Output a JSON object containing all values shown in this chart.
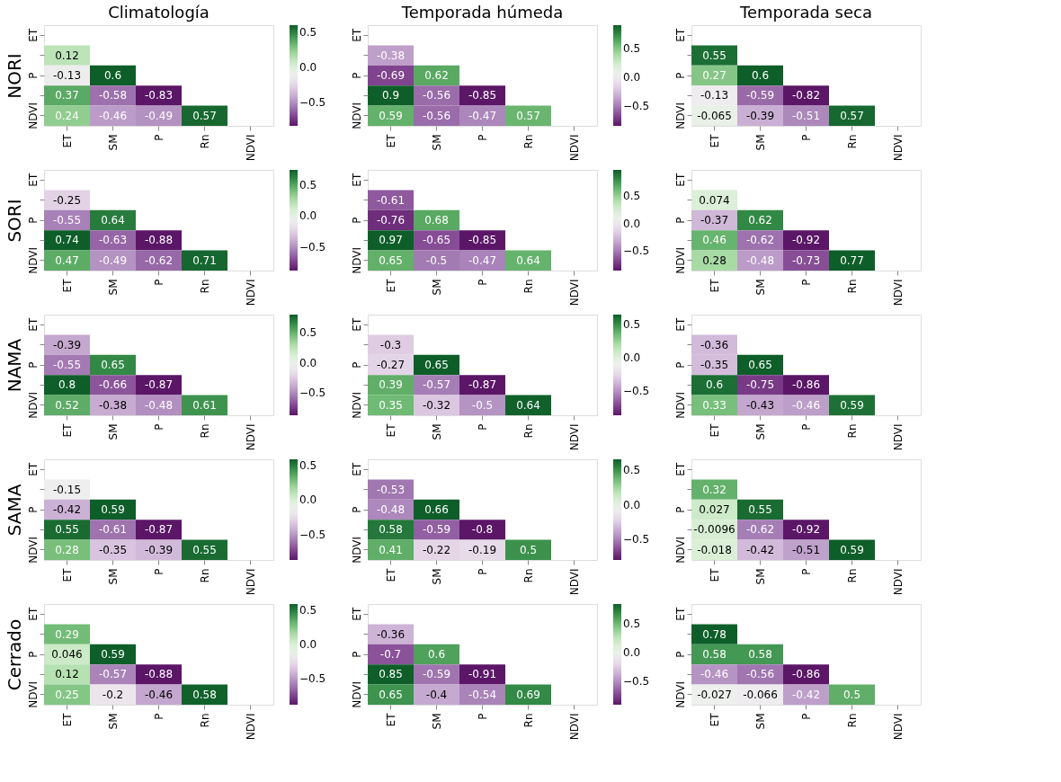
{
  "chart_data": [
    {
      "type": "heatmap",
      "title": "Climatología",
      "ylabel": "NORI",
      "data_labels": true,
      "categories": [
        "ET",
        "SM",
        "P",
        "Rn",
        "NDVI"
      ],
      "y_categories": [
        "ET",
        null,
        "P",
        null,
        "NDVI"
      ],
      "cells": [
        [
          null,
          null,
          null,
          null,
          null
        ],
        [
          0.12,
          null,
          null,
          null,
          null
        ],
        [
          -0.13,
          0.6,
          null,
          null,
          null
        ],
        [
          0.37,
          -0.58,
          -0.83,
          null,
          null
        ],
        [
          0.24,
          -0.46,
          -0.49,
          0.57,
          null
        ]
      ],
      "clim": [
        -0.83,
        0.6
      ],
      "cticks": [
        {
          "value": -0.5,
          "label": "−0.5"
        },
        {
          "value": 0,
          "label": "0.0"
        },
        {
          "value": 0.5,
          "label": "0.5"
        }
      ]
    },
    {
      "type": "heatmap",
      "title": "Temporada húmeda",
      "data_labels": true,
      "categories": [
        "ET",
        "SM",
        "P",
        "Rn",
        "NDVI"
      ],
      "y_categories": [
        "ET",
        null,
        "P",
        null,
        "NDVI"
      ],
      "cells": [
        [
          null,
          null,
          null,
          null,
          null
        ],
        [
          -0.38,
          null,
          null,
          null,
          null
        ],
        [
          -0.69,
          0.62,
          null,
          null,
          null
        ],
        [
          0.9,
          -0.56,
          -0.85,
          null,
          null
        ],
        [
          0.59,
          -0.56,
          -0.47,
          0.57,
          null
        ]
      ],
      "clim": [
        -0.85,
        0.9
      ],
      "cticks": [
        {
          "value": -0.5,
          "label": "−0.5"
        },
        {
          "value": 0,
          "label": "0.0"
        },
        {
          "value": 0.5,
          "label": "0.5"
        }
      ]
    },
    {
      "type": "heatmap",
      "title": "Temporada seca",
      "data_labels": true,
      "categories": [
        "ET",
        "SM",
        "P",
        "Rn",
        "NDVI"
      ],
      "y_categories": [
        "ET",
        null,
        "P",
        null,
        "NDVI"
      ],
      "cells": [
        [
          null,
          null,
          null,
          null,
          null
        ],
        [
          0.55,
          null,
          null,
          null,
          null
        ],
        [
          0.27,
          0.6,
          null,
          null,
          null
        ],
        [
          -0.13,
          -0.59,
          -0.82,
          null,
          null
        ],
        [
          -0.065,
          -0.39,
          -0.51,
          0.57,
          null
        ]
      ]
    },
    {
      "type": "heatmap",
      "ylabel": "SORI",
      "data_labels": true,
      "categories": [
        "ET",
        "SM",
        "P",
        "Rn",
        "NDVI"
      ],
      "y_categories": [
        "ET",
        null,
        "P",
        null,
        "NDVI"
      ],
      "cells": [
        [
          null,
          null,
          null,
          null,
          null
        ],
        [
          -0.25,
          null,
          null,
          null,
          null
        ],
        [
          -0.55,
          0.64,
          null,
          null,
          null
        ],
        [
          0.74,
          -0.63,
          -0.88,
          null,
          null
        ],
        [
          0.47,
          -0.49,
          -0.62,
          0.71,
          null
        ]
      ],
      "clim": [
        -0.88,
        0.74
      ],
      "cticks": [
        {
          "value": -0.5,
          "label": "−0.5"
        },
        {
          "value": 0,
          "label": "0.0"
        },
        {
          "value": 0.5,
          "label": "0.5"
        }
      ]
    },
    {
      "type": "heatmap",
      "data_labels": true,
      "categories": [
        "ET",
        "SM",
        "P",
        "Rn",
        "NDVI"
      ],
      "y_categories": [
        "ET",
        null,
        "P",
        null,
        "NDVI"
      ],
      "cells": [
        [
          null,
          null,
          null,
          null,
          null
        ],
        [
          -0.61,
          null,
          null,
          null,
          null
        ],
        [
          -0.76,
          0.68,
          null,
          null,
          null
        ],
        [
          0.97,
          -0.65,
          -0.85,
          null,
          null
        ],
        [
          0.65,
          -0.5,
          -0.47,
          0.64,
          null
        ]
      ],
      "clim": [
        -0.85,
        0.97
      ],
      "cticks": [
        {
          "value": -0.5,
          "label": "−0.5"
        },
        {
          "value": 0,
          "label": "0.0"
        },
        {
          "value": 0.5,
          "label": "0.5"
        }
      ]
    },
    {
      "type": "heatmap",
      "data_labels": true,
      "categories": [
        "ET",
        "SM",
        "P",
        "Rn",
        "NDVI"
      ],
      "y_categories": [
        "ET",
        null,
        "P",
        null,
        "NDVI"
      ],
      "cells": [
        [
          null,
          null,
          null,
          null,
          null
        ],
        [
          0.074,
          null,
          null,
          null,
          null
        ],
        [
          -0.37,
          0.62,
          null,
          null,
          null
        ],
        [
          0.46,
          -0.62,
          -0.92,
          null,
          null
        ],
        [
          0.28,
          -0.48,
          -0.73,
          0.77,
          null
        ]
      ]
    },
    {
      "type": "heatmap",
      "ylabel": "NAMA",
      "data_labels": true,
      "categories": [
        "ET",
        "SM",
        "P",
        "Rn",
        "NDVI"
      ],
      "y_categories": [
        "ET",
        null,
        "P",
        null,
        "NDVI"
      ],
      "cells": [
        [
          null,
          null,
          null,
          null,
          null
        ],
        [
          -0.39,
          null,
          null,
          null,
          null
        ],
        [
          -0.55,
          0.65,
          null,
          null,
          null
        ],
        [
          0.8,
          -0.66,
          -0.87,
          null,
          null
        ],
        [
          0.52,
          -0.38,
          -0.48,
          0.61,
          null
        ]
      ],
      "clim": [
        -0.87,
        0.8
      ],
      "cticks": [
        {
          "value": -0.5,
          "label": "−0.5"
        },
        {
          "value": 0,
          "label": "0.0"
        },
        {
          "value": 0.5,
          "label": "0.5"
        }
      ]
    },
    {
      "type": "heatmap",
      "data_labels": true,
      "categories": [
        "ET",
        "SM",
        "P",
        "Rn",
        "NDVI"
      ],
      "y_categories": [
        "ET",
        null,
        "P",
        null,
        "NDVI"
      ],
      "cells": [
        [
          null,
          null,
          null,
          null,
          null
        ],
        [
          -0.3,
          null,
          null,
          null,
          null
        ],
        [
          -0.27,
          0.65,
          null,
          null,
          null
        ],
        [
          0.39,
          -0.57,
          -0.87,
          null,
          null
        ],
        [
          0.35,
          -0.32,
          -0.5,
          0.64,
          null
        ]
      ],
      "clim": [
        -0.87,
        0.65
      ],
      "cticks": [
        {
          "value": -0.5,
          "label": "−0.5"
        },
        {
          "value": 0,
          "label": "0.0"
        },
        {
          "value": 0.5,
          "label": "0.5"
        }
      ]
    },
    {
      "type": "heatmap",
      "data_labels": true,
      "categories": [
        "ET",
        "SM",
        "P",
        "Rn",
        "NDVI"
      ],
      "y_categories": [
        "ET",
        null,
        "P",
        null,
        "NDVI"
      ],
      "cells": [
        [
          null,
          null,
          null,
          null,
          null
        ],
        [
          -0.36,
          null,
          null,
          null,
          null
        ],
        [
          -0.35,
          0.65,
          null,
          null,
          null
        ],
        [
          0.6,
          -0.75,
          -0.86,
          null,
          null
        ],
        [
          0.33,
          -0.43,
          -0.46,
          0.59,
          null
        ]
      ]
    },
    {
      "type": "heatmap",
      "ylabel": "SAMA",
      "data_labels": true,
      "categories": [
        "ET",
        "SM",
        "P",
        "Rn",
        "NDVI"
      ],
      "y_categories": [
        "ET",
        null,
        "P",
        null,
        "NDVI"
      ],
      "cells": [
        [
          null,
          null,
          null,
          null,
          null
        ],
        [
          -0.15,
          null,
          null,
          null,
          null
        ],
        [
          -0.42,
          0.59,
          null,
          null,
          null
        ],
        [
          0.55,
          -0.61,
          -0.87,
          null,
          null
        ],
        [
          0.28,
          -0.35,
          -0.39,
          0.55,
          null
        ]
      ],
      "clim": [
        -0.87,
        0.59
      ],
      "cticks": [
        {
          "value": -0.5,
          "label": "−0.5"
        },
        {
          "value": 0,
          "label": "0.0"
        },
        {
          "value": 0.5,
          "label": "0.5"
        }
      ]
    },
    {
      "type": "heatmap",
      "data_labels": true,
      "categories": [
        "ET",
        "SM",
        "P",
        "Rn",
        "NDVI"
      ],
      "y_categories": [
        "ET",
        null,
        "P",
        null,
        "NDVI"
      ],
      "cells": [
        [
          null,
          null,
          null,
          null,
          null
        ],
        [
          -0.53,
          null,
          null,
          null,
          null
        ],
        [
          -0.48,
          0.66,
          null,
          null,
          null
        ],
        [
          0.58,
          -0.59,
          -0.8,
          null,
          null
        ],
        [
          0.41,
          -0.22,
          -0.19,
          0.5,
          null
        ]
      ],
      "clim": [
        -0.8,
        0.66
      ],
      "cticks": [
        {
          "value": -0.5,
          "label": "−0.5"
        },
        {
          "value": 0,
          "label": "0.0"
        },
        {
          "value": 0.5,
          "label": "0.5"
        }
      ]
    },
    {
      "type": "heatmap",
      "data_labels": true,
      "categories": [
        "ET",
        "SM",
        "P",
        "Rn",
        "NDVI"
      ],
      "y_categories": [
        "ET",
        null,
        "P",
        null,
        "NDVI"
      ],
      "cells": [
        [
          null,
          null,
          null,
          null,
          null
        ],
        [
          0.32,
          null,
          null,
          null,
          null
        ],
        [
          0.027,
          0.55,
          null,
          null,
          null
        ],
        [
          -0.0096,
          -0.62,
          -0.92,
          null,
          null
        ],
        [
          -0.018,
          -0.42,
          -0.51,
          0.59,
          null
        ]
      ]
    },
    {
      "type": "heatmap",
      "ylabel": "Cerrado",
      "data_labels": true,
      "categories": [
        "ET",
        "SM",
        "P",
        "Rn",
        "NDVI"
      ],
      "y_categories": [
        "ET",
        null,
        "P",
        null,
        "NDVI"
      ],
      "cells": [
        [
          null,
          null,
          null,
          null,
          null
        ],
        [
          0.29,
          null,
          null,
          null,
          null
        ],
        [
          0.046,
          0.59,
          null,
          null,
          null
        ],
        [
          0.12,
          -0.57,
          -0.88,
          null,
          null
        ],
        [
          0.25,
          -0.2,
          -0.46,
          0.58,
          null
        ]
      ],
      "clim": [
        -0.88,
        0.59
      ],
      "cticks": [
        {
          "value": -0.5,
          "label": "−0.5"
        },
        {
          "value": 0,
          "label": "0.0"
        },
        {
          "value": 0.5,
          "label": "0.5"
        }
      ]
    },
    {
      "type": "heatmap",
      "data_labels": true,
      "categories": [
        "ET",
        "SM",
        "P",
        "Rn",
        "NDVI"
      ],
      "y_categories": [
        "ET",
        null,
        "P",
        null,
        "NDVI"
      ],
      "cells": [
        [
          null,
          null,
          null,
          null,
          null
        ],
        [
          -0.36,
          null,
          null,
          null,
          null
        ],
        [
          -0.7,
          0.6,
          null,
          null,
          null
        ],
        [
          0.85,
          -0.59,
          -0.91,
          null,
          null
        ],
        [
          0.65,
          -0.4,
          -0.54,
          0.69,
          null
        ]
      ],
      "clim": [
        -0.91,
        0.85
      ],
      "cticks": [
        {
          "value": -0.5,
          "label": "−0.5"
        },
        {
          "value": 0,
          "label": "0.0"
        },
        {
          "value": 0.5,
          "label": "0.5"
        }
      ]
    },
    {
      "type": "heatmap",
      "data_labels": true,
      "categories": [
        "ET",
        "SM",
        "P",
        "Rn",
        "NDVI"
      ],
      "y_categories": [
        "ET",
        null,
        "P",
        null,
        "NDVI"
      ],
      "cells": [
        [
          null,
          null,
          null,
          null,
          null
        ],
        [
          0.78,
          null,
          null,
          null,
          null
        ],
        [
          0.58,
          0.58,
          null,
          null,
          null
        ],
        [
          -0.46,
          -0.56,
          -0.86,
          null,
          null
        ],
        [
          -0.027,
          -0.066,
          -0.42,
          0.5,
          null
        ]
      ]
    }
  ]
}
